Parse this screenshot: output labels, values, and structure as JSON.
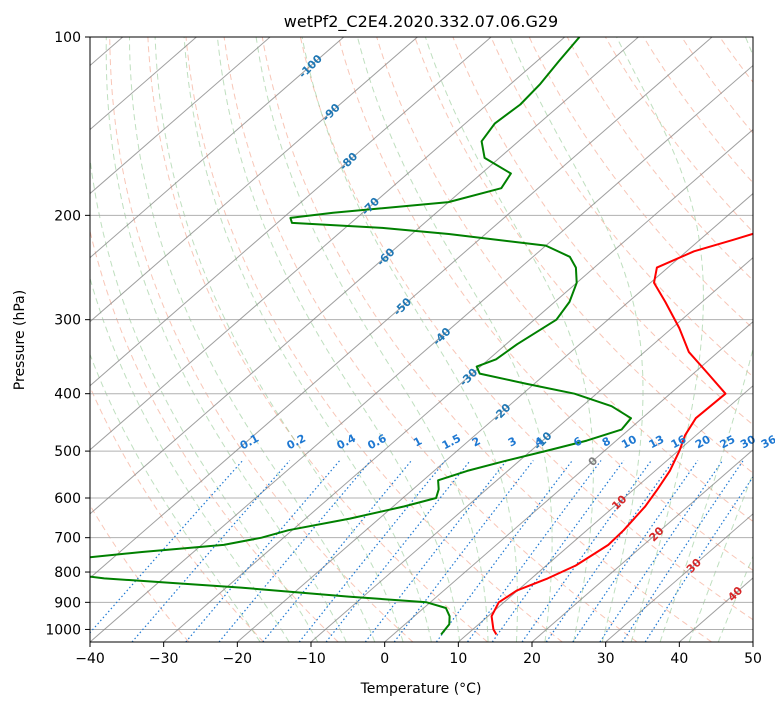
{
  "chart_data": {
    "type": "line",
    "chart_kind": "skew-t log-p diagram",
    "title": "wetPf2_C2E4.2020.332.07.06.G29",
    "xlabel": "Temperature (°C)",
    "ylabel": "Pressure (hPa)",
    "xlim": [
      -40,
      50
    ],
    "ylim": [
      1050,
      100
    ],
    "y_scale": "log",
    "grid": true,
    "x_ticks": [
      "−40",
      "−30",
      "−20",
      "−10",
      "0",
      "10",
      "20",
      "30",
      "40",
      "50"
    ],
    "y_ticks": [
      "100",
      "200",
      "300",
      "400",
      "500",
      "600",
      "700",
      "800",
      "900",
      "1000"
    ],
    "y_tick_values": [
      100,
      200,
      300,
      400,
      500,
      600,
      700,
      800,
      900,
      1000
    ],
    "isotherm_labels": [
      "-100",
      "-90",
      "-80",
      "-70",
      "-60",
      "-50",
      "-40",
      "-30",
      "-20",
      "-10",
      "0",
      "10",
      "20",
      "30",
      "40"
    ],
    "isotherm_label_values": [
      -100,
      -90,
      -80,
      -70,
      -60,
      -50,
      -40,
      -30,
      -20,
      -10,
      0,
      10,
      20,
      30,
      40
    ],
    "isotherm_label_pressures": [
      112,
      134,
      162,
      193,
      235,
      285,
      320,
      375,
      430,
      480,
      520,
      610,
      690,
      780,
      870
    ],
    "mixing_ratio_labels": [
      "0.1",
      "0.2",
      "0.4",
      "0.6",
      "1",
      "1.5",
      "2",
      "3",
      "4",
      "6",
      "8",
      "10",
      "13",
      "16",
      "20",
      "25",
      "30",
      "36"
    ],
    "colors": {
      "temperature": "#ff0000",
      "dewpoint": "#008000",
      "isotherm": "#808080",
      "dry_adiabat": "#f08060",
      "moist_adiabat": "#7fbf7f",
      "mixing_ratio": "#1e78d2",
      "grid": "#b0b0b0",
      "label_cold": "#1f77b4",
      "label_zero": "#808080",
      "label_warm": "#d62728"
    },
    "series": [
      {
        "name": "Temperature",
        "color": "#ff0000",
        "points": [
          [
            1020,
            14.0
          ],
          [
            1000,
            12.8
          ],
          [
            950,
            10.5
          ],
          [
            900,
            9.3
          ],
          [
            860,
            9.9
          ],
          [
            820,
            12.2
          ],
          [
            780,
            14.0
          ],
          [
            720,
            15.2
          ],
          [
            680,
            15.0
          ],
          [
            620,
            14.2
          ],
          [
            580,
            13.2
          ],
          [
            540,
            12.0
          ],
          [
            500,
            10.2
          ],
          [
            470,
            8.5
          ],
          [
            440,
            7.3
          ],
          [
            400,
            7.5
          ],
          [
            370,
            2.0
          ],
          [
            340,
            -4.0
          ],
          [
            310,
            -9.0
          ],
          [
            280,
            -15.0
          ],
          [
            260,
            -19.5
          ],
          [
            245,
            -21.5
          ],
          [
            230,
            -19.0
          ],
          [
            220,
            -15.5
          ],
          [
            210,
            -12.0
          ],
          [
            200,
            -11.0
          ],
          [
            190,
            -12.5
          ],
          [
            180,
            -15.5
          ],
          [
            165,
            -20.0
          ],
          [
            150,
            -23.5
          ],
          [
            130,
            -30.0
          ],
          [
            115,
            -33.5
          ],
          [
            100,
            -37.5
          ]
        ]
      },
      {
        "name": "Dewpoint",
        "color": "#008000",
        "points": [
          [
            1020,
            6.5
          ],
          [
            980,
            6.0
          ],
          [
            950,
            4.8
          ],
          [
            920,
            3.0
          ],
          [
            900,
            -0.5
          ],
          [
            880,
            -12.0
          ],
          [
            850,
            -28.0
          ],
          [
            820,
            -48.0
          ],
          [
            800,
            -56.0
          ],
          [
            780,
            -58.0
          ],
          [
            760,
            -55.0
          ],
          [
            740,
            -47.0
          ],
          [
            720,
            -37.0
          ],
          [
            700,
            -33.0
          ],
          [
            680,
            -30.5
          ],
          [
            650,
            -24.0
          ],
          [
            620,
            -18.5
          ],
          [
            600,
            -15.5
          ],
          [
            580,
            -16.5
          ],
          [
            560,
            -18.0
          ],
          [
            540,
            -15.5
          ],
          [
            520,
            -12.0
          ],
          [
            500,
            -8.0
          ],
          [
            480,
            -4.0
          ],
          [
            460,
            -1.0
          ],
          [
            440,
            -1.5
          ],
          [
            420,
            -6.0
          ],
          [
            400,
            -13.0
          ],
          [
            385,
            -21.0
          ],
          [
            370,
            -29.0
          ],
          [
            360,
            -30.5
          ],
          [
            350,
            -29.0
          ],
          [
            330,
            -28.5
          ],
          [
            300,
            -27.0
          ],
          [
            280,
            -28.0
          ],
          [
            260,
            -30.0
          ],
          [
            245,
            -32.5
          ],
          [
            235,
            -35.0
          ],
          [
            225,
            -40.0
          ],
          [
            215,
            -55.0
          ],
          [
            210,
            -65.0
          ],
          [
            206,
            -78.0
          ],
          [
            202,
            -79.0
          ],
          [
            198,
            -74.0
          ],
          [
            190,
            -60.0
          ],
          [
            180,
            -55.0
          ],
          [
            170,
            -56.0
          ],
          [
            160,
            -62.0
          ],
          [
            150,
            -65.0
          ],
          [
            140,
            -66.0
          ],
          [
            130,
            -65.5
          ],
          [
            120,
            -66.0
          ],
          [
            110,
            -67.0
          ],
          [
            100,
            -68.0
          ]
        ]
      }
    ]
  }
}
